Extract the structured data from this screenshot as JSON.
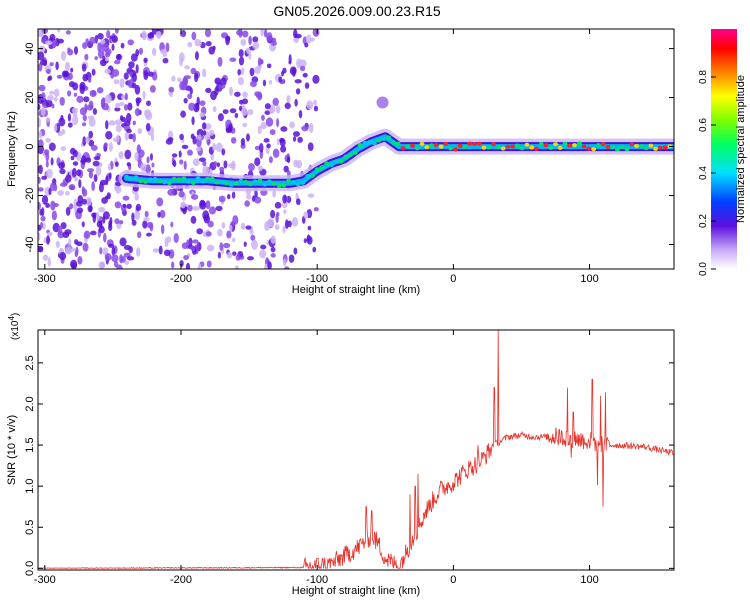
{
  "title": "GN05.2026.009.00.23.R15",
  "colors": {
    "line": "#e8322a",
    "spectro_low": "#6a1fd8",
    "spectro_mid": "#00b8f0",
    "spectro_high": "#ff2020"
  },
  "chart_data": [
    {
      "type": "heatmap",
      "xlabel": "Height of straight line (km)",
      "ylabel": "Frequency (Hz)",
      "xlim": [
        -305,
        162
      ],
      "ylim": [
        -50,
        48
      ],
      "xticks": [
        -300,
        -200,
        -100,
        0,
        100
      ],
      "yticks": [
        -40,
        -20,
        0,
        20,
        40
      ],
      "colorbar": {
        "label": "Normalized spectral amplitude",
        "range": [
          0.0,
          1.0
        ],
        "ticks": [
          "0.0",
          "0.2",
          "0.4",
          "0.6",
          "0.8"
        ],
        "tick_values": [
          0.0,
          0.2,
          0.4,
          0.6,
          0.8
        ]
      },
      "ridge": {
        "x": [
          -240,
          -220,
          -200,
          -180,
          -160,
          -140,
          -120,
          -110,
          -100,
          -90,
          -80,
          -70,
          -60,
          -50,
          -40,
          -30,
          -20,
          0,
          20,
          50,
          80,
          100,
          120,
          162
        ],
        "y": [
          -13,
          -14,
          -14,
          -14,
          -15,
          -15,
          -15,
          -14,
          -10,
          -7,
          -5,
          -1,
          2,
          4,
          0,
          0,
          0,
          0,
          0,
          0,
          0,
          0,
          0,
          0
        ]
      },
      "noise_x_range": [
        -305,
        -100
      ]
    },
    {
      "type": "line",
      "xlabel": "Height of straight line (km)",
      "ylabel": "SNR (10 * v/v)",
      "y_multiplier": "(x10",
      "y_multiplier_exp": "4",
      "xlim": [
        -305,
        162
      ],
      "ylim": [
        -0.02,
        2.9
      ],
      "xticks": [
        -300,
        -200,
        -100,
        0,
        100
      ],
      "yticks": [
        "0.0",
        "0.5",
        "1.0",
        "1.5",
        "2.0",
        "2.5"
      ],
      "ytick_values": [
        0.0,
        0.5,
        1.0,
        1.5,
        2.0,
        2.5
      ],
      "envelope": {
        "x": [
          -305,
          -110,
          -90,
          -70,
          -60,
          -55,
          -50,
          -40,
          -30,
          -20,
          -10,
          0,
          10,
          20,
          30,
          40,
          50,
          60,
          80,
          100,
          110,
          120,
          140,
          162
        ],
        "y": [
          0.0,
          0.01,
          0.05,
          0.25,
          0.4,
          0.3,
          0.12,
          0.02,
          0.35,
          0.7,
          0.95,
          1.05,
          1.2,
          1.3,
          1.5,
          1.6,
          1.62,
          1.6,
          1.6,
          1.55,
          1.5,
          1.5,
          1.48,
          1.4
        ]
      },
      "spikes": [
        {
          "x": -64,
          "y": 0.75
        },
        {
          "x": -60,
          "y": 0.7
        },
        {
          "x": -32,
          "y": 0.9
        },
        {
          "x": -28,
          "y": 1.0
        },
        {
          "x": -26,
          "y": 1.15
        },
        {
          "x": 18,
          "y": 1.5
        },
        {
          "x": 30,
          "y": 2.2
        },
        {
          "x": 33,
          "y": 2.9
        },
        {
          "x": 84,
          "y": 2.2
        },
        {
          "x": 88,
          "y": 1.9
        },
        {
          "x": 102,
          "y": 2.3
        },
        {
          "x": 108,
          "y": 2.1
        },
        {
          "x": 110,
          "y": 0.75
        }
      ]
    }
  ]
}
